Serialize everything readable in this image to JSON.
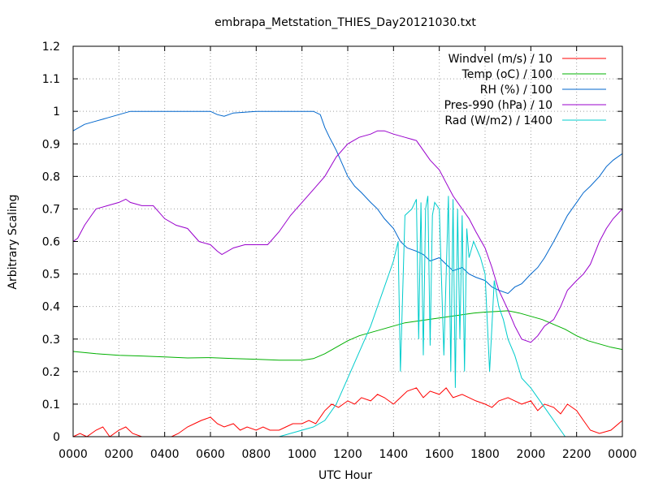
{
  "chart_data": {
    "type": "line",
    "title": "embrapa_Metstation_THIES_Day20121030.txt",
    "xlabel": "UTC Hour",
    "ylabel": "Arbitrary Scaling",
    "xlim": [
      0,
      24
    ],
    "ylim": [
      0,
      1.2
    ],
    "grid": true,
    "legend_position": "top-right",
    "x_tick_labels": [
      "0000",
      "0200",
      "0400",
      "0600",
      "0800",
      "1000",
      "1200",
      "1400",
      "1600",
      "1800",
      "2000",
      "2200",
      "0000"
    ],
    "y_tick_labels": [
      "0",
      "0.1",
      "0.2",
      "0.3",
      "0.4",
      "0.5",
      "0.6",
      "0.7",
      "0.8",
      "0.9",
      "1",
      "1.1",
      "1.2"
    ],
    "series": [
      {
        "name": "Windvel (m/s) / 10",
        "color": "#ff0000",
        "x": [
          0,
          0.3,
          0.6,
          1,
          1.3,
          1.6,
          2,
          2.3,
          2.6,
          3,
          3.5,
          4,
          4.3,
          4.6,
          5,
          5.3,
          5.6,
          6,
          6.3,
          6.6,
          7,
          7.3,
          7.6,
          8,
          8.3,
          8.6,
          9,
          9.3,
          9.6,
          10,
          10.3,
          10.6,
          11,
          11.3,
          11.6,
          12,
          12.3,
          12.6,
          13,
          13.3,
          13.6,
          14,
          14.3,
          14.6,
          15,
          15.3,
          15.6,
          16,
          16.3,
          16.6,
          17,
          17.3,
          17.6,
          18,
          18.3,
          18.6,
          19,
          19.3,
          19.6,
          20,
          20.3,
          20.6,
          21,
          21.3,
          21.6,
          22,
          22.3,
          22.6,
          23,
          23.5,
          24
        ],
        "values": [
          0,
          0.01,
          0,
          0.02,
          0.03,
          0,
          0.02,
          0.03,
          0.01,
          0,
          0,
          0,
          0,
          0.01,
          0.03,
          0.04,
          0.05,
          0.06,
          0.04,
          0.03,
          0.04,
          0.02,
          0.03,
          0.02,
          0.03,
          0.02,
          0.02,
          0.03,
          0.04,
          0.04,
          0.05,
          0.04,
          0.08,
          0.1,
          0.09,
          0.11,
          0.1,
          0.12,
          0.11,
          0.13,
          0.12,
          0.1,
          0.12,
          0.14,
          0.15,
          0.12,
          0.14,
          0.13,
          0.15,
          0.12,
          0.13,
          0.12,
          0.11,
          0.1,
          0.09,
          0.11,
          0.12,
          0.11,
          0.1,
          0.11,
          0.08,
          0.1,
          0.09,
          0.07,
          0.1,
          0.08,
          0.05,
          0.02,
          0.01,
          0.02,
          0.05
        ]
      },
      {
        "name": "Temp (oC) / 100",
        "color": "#00b000",
        "x": [
          0,
          1,
          2,
          3,
          4,
          5,
          6,
          7,
          8,
          9,
          10,
          10.5,
          11,
          11.5,
          12,
          12.5,
          13,
          13.5,
          14,
          14.5,
          15,
          15.5,
          16,
          16.5,
          17,
          17.5,
          18,
          18.5,
          19,
          19.5,
          20,
          20.5,
          21,
          21.5,
          22,
          22.5,
          23,
          23.5,
          24
        ],
        "values": [
          0.262,
          0.255,
          0.25,
          0.248,
          0.245,
          0.242,
          0.243,
          0.24,
          0.238,
          0.235,
          0.235,
          0.24,
          0.255,
          0.275,
          0.295,
          0.31,
          0.32,
          0.33,
          0.34,
          0.35,
          0.355,
          0.36,
          0.365,
          0.37,
          0.375,
          0.38,
          0.383,
          0.385,
          0.387,
          0.38,
          0.37,
          0.36,
          0.345,
          0.33,
          0.31,
          0.295,
          0.285,
          0.275,
          0.268
        ]
      },
      {
        "name": "RH (%) / 100",
        "color": "#0066cc",
        "x": [
          0,
          0.5,
          1,
          1.5,
          2,
          2.5,
          3,
          4,
          5,
          6,
          6.3,
          6.6,
          7,
          8,
          9,
          10,
          10.5,
          10.8,
          11,
          11.2,
          11.5,
          12,
          12.3,
          12.6,
          13,
          13.3,
          13.6,
          14,
          14.3,
          14.6,
          15,
          15.3,
          15.6,
          16,
          16.3,
          16.6,
          17,
          17.3,
          17.6,
          18,
          18.3,
          18.6,
          19,
          19.3,
          19.6,
          20,
          20.3,
          20.6,
          21,
          21.3,
          21.6,
          22,
          22.3,
          22.6,
          23,
          23.3,
          23.6,
          24
        ],
        "values": [
          0.94,
          0.96,
          0.97,
          0.98,
          0.99,
          1.0,
          1.0,
          1.0,
          1.0,
          1.0,
          0.99,
          0.985,
          0.995,
          1.0,
          1.0,
          1.0,
          1.0,
          0.99,
          0.95,
          0.92,
          0.88,
          0.8,
          0.77,
          0.75,
          0.72,
          0.7,
          0.67,
          0.64,
          0.6,
          0.58,
          0.57,
          0.56,
          0.54,
          0.55,
          0.53,
          0.51,
          0.52,
          0.5,
          0.49,
          0.48,
          0.46,
          0.45,
          0.44,
          0.46,
          0.47,
          0.5,
          0.52,
          0.55,
          0.6,
          0.64,
          0.68,
          0.72,
          0.75,
          0.77,
          0.8,
          0.83,
          0.85,
          0.87
        ]
      },
      {
        "name": "Pres-990 (hPa) / 10",
        "color": "#9900cc",
        "x": [
          0,
          0.2,
          0.5,
          0.8,
          1,
          1.5,
          2,
          2.3,
          2.5,
          3,
          3.5,
          4,
          4.5,
          5,
          5.5,
          6,
          6.3,
          6.5,
          7,
          7.5,
          8,
          8.5,
          9,
          9.5,
          10,
          10.5,
          11,
          11.5,
          12,
          12.5,
          13,
          13.3,
          13.6,
          14,
          14.5,
          15,
          15.3,
          15.6,
          16,
          16.3,
          16.6,
          17,
          17.3,
          17.6,
          18,
          18.3,
          18.6,
          19,
          19.3,
          19.6,
          20,
          20.3,
          20.6,
          21,
          21.3,
          21.6,
          22,
          22.3,
          22.6,
          23,
          23.3,
          23.6,
          24
        ],
        "values": [
          0.6,
          0.61,
          0.65,
          0.68,
          0.7,
          0.71,
          0.72,
          0.73,
          0.72,
          0.71,
          0.71,
          0.67,
          0.65,
          0.64,
          0.6,
          0.59,
          0.57,
          0.56,
          0.58,
          0.59,
          0.59,
          0.59,
          0.63,
          0.68,
          0.72,
          0.76,
          0.8,
          0.86,
          0.9,
          0.92,
          0.93,
          0.94,
          0.94,
          0.93,
          0.92,
          0.91,
          0.88,
          0.85,
          0.82,
          0.78,
          0.74,
          0.7,
          0.67,
          0.63,
          0.58,
          0.52,
          0.45,
          0.39,
          0.34,
          0.3,
          0.29,
          0.31,
          0.34,
          0.36,
          0.4,
          0.45,
          0.48,
          0.5,
          0.53,
          0.6,
          0.64,
          0.67,
          0.7
        ]
      },
      {
        "name": "Rad (W/m2) / 1400",
        "color": "#00cccc",
        "x": [
          0,
          9,
          10,
          10.5,
          11,
          11.5,
          12,
          12.5,
          13,
          13.5,
          14,
          14.2,
          14.3,
          14.5,
          14.8,
          15,
          15.1,
          15.2,
          15.3,
          15.4,
          15.5,
          15.6,
          15.7,
          15.8,
          16,
          16.2,
          16.4,
          16.5,
          16.6,
          16.7,
          16.8,
          16.9,
          17,
          17.1,
          17.2,
          17.3,
          17.5,
          17.8,
          18,
          18.2,
          18.4,
          18.6,
          18.8,
          19,
          19.3,
          19.6,
          20,
          20.5,
          21,
          21.5,
          24
        ],
        "values": [
          0,
          0,
          0.02,
          0.03,
          0.05,
          0.1,
          0.18,
          0.26,
          0.34,
          0.44,
          0.54,
          0.6,
          0.2,
          0.68,
          0.7,
          0.73,
          0.3,
          0.72,
          0.25,
          0.7,
          0.74,
          0.28,
          0.68,
          0.72,
          0.7,
          0.25,
          0.74,
          0.2,
          0.73,
          0.15,
          0.7,
          0.3,
          0.68,
          0.2,
          0.64,
          0.55,
          0.6,
          0.55,
          0.5,
          0.2,
          0.48,
          0.4,
          0.36,
          0.3,
          0.25,
          0.18,
          0.15,
          0.1,
          0.05,
          0,
          0
        ]
      }
    ]
  }
}
